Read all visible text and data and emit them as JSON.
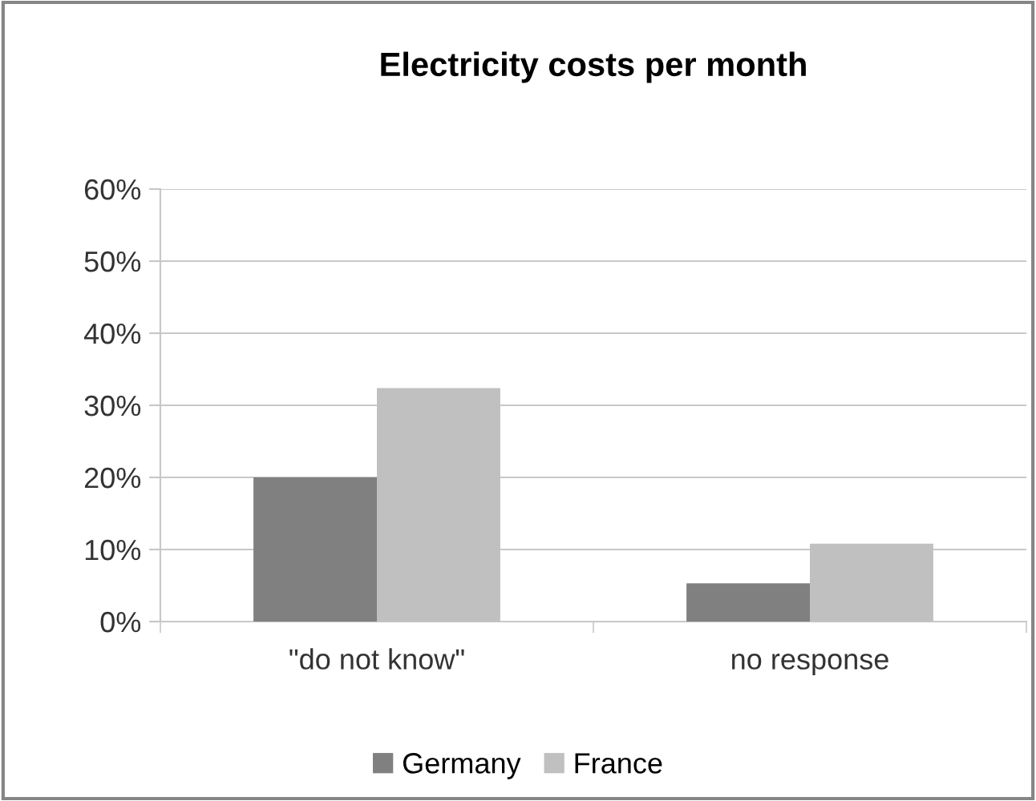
{
  "chart_data": {
    "type": "bar",
    "title": "Electricity costs per month",
    "categories": [
      "\"do not know\"",
      "no response"
    ],
    "series": [
      {
        "name": "Germany",
        "color": "#808080",
        "values": [
          20.0,
          5.3
        ]
      },
      {
        "name": "France",
        "color": "#c0c0c0",
        "values": [
          32.4,
          10.8
        ]
      }
    ],
    "ylim": [
      0,
      60
    ],
    "yticks": [
      {
        "value": 0,
        "label": "0%"
      },
      {
        "value": 10,
        "label": "10%"
      },
      {
        "value": 20,
        "label": "20%"
      },
      {
        "value": 30,
        "label": "30%"
      },
      {
        "value": 40,
        "label": "40%"
      },
      {
        "value": 50,
        "label": "50%"
      },
      {
        "value": 60,
        "label": "60%"
      }
    ],
    "grid": "y",
    "legend": "bottom"
  }
}
